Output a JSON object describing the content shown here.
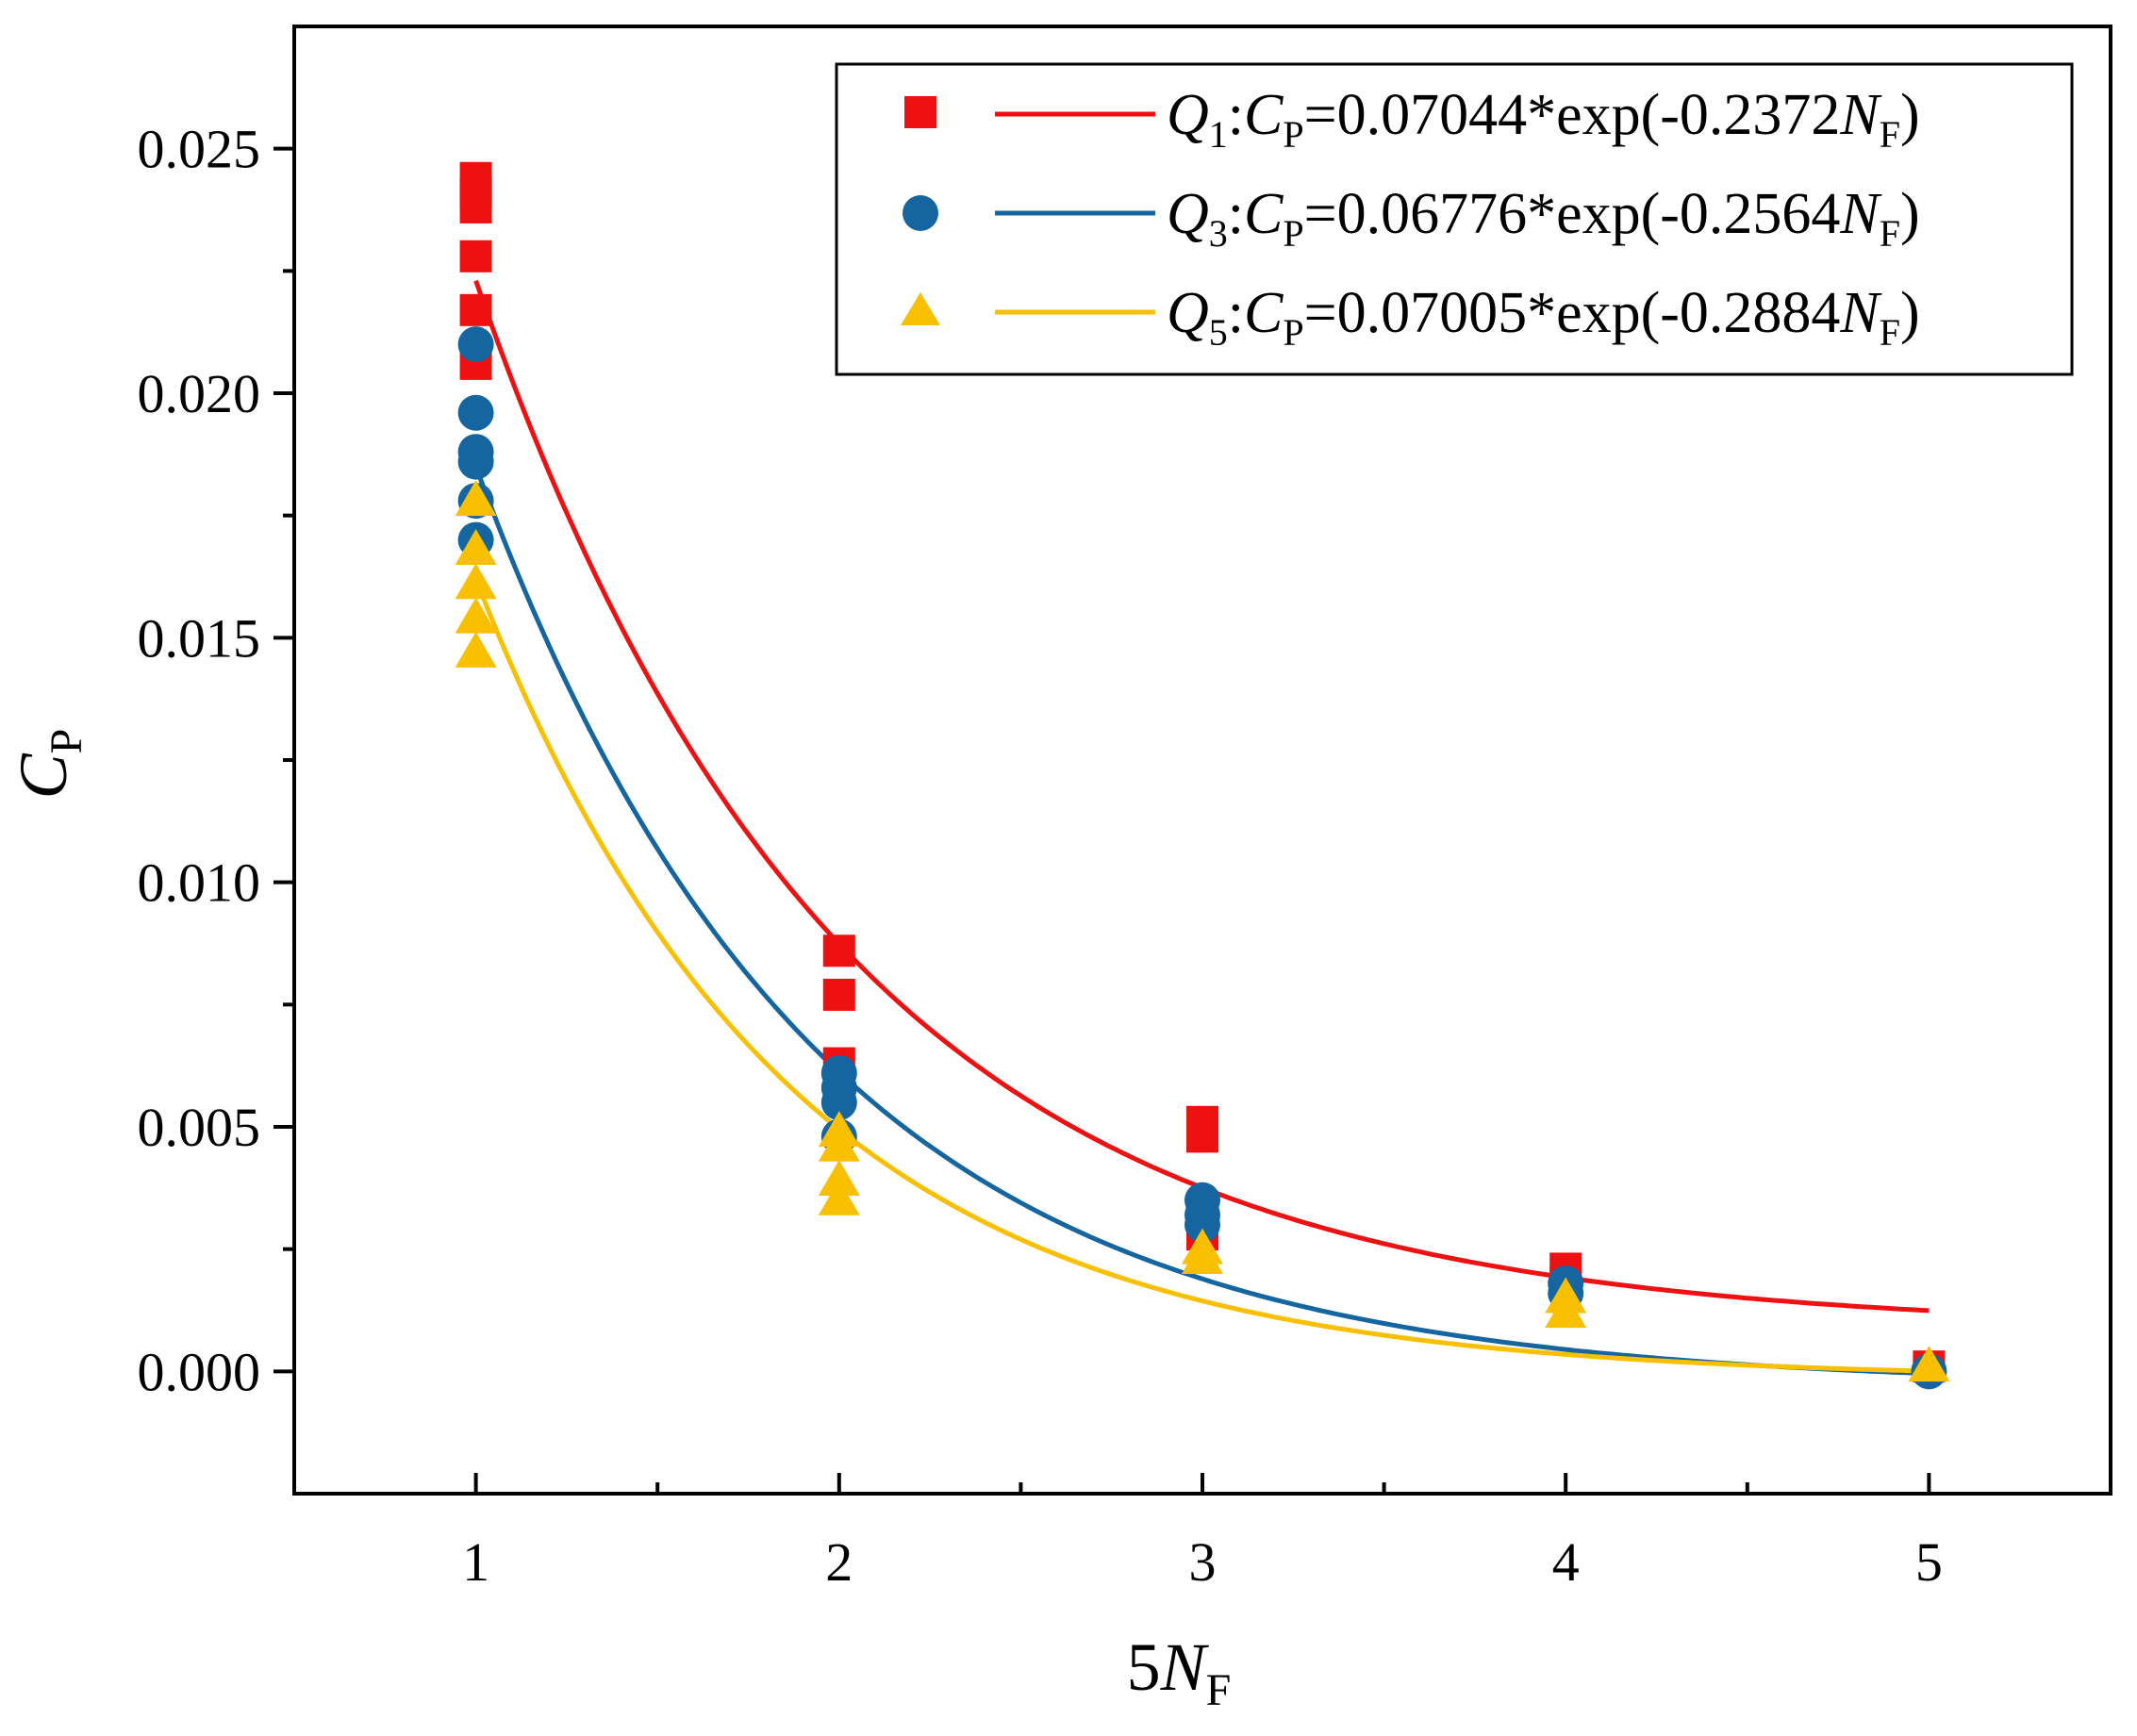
{
  "chart_data": {
    "type": "scatter",
    "title": "",
    "xlabel": "5NF",
    "ylabel": "CP",
    "xlim": [
      0.5,
      5.5
    ],
    "ylim": [
      -0.0025,
      0.0275
    ],
    "xticks": [
      1,
      2,
      3,
      4,
      5
    ],
    "xtick_labels": [
      "1",
      "2",
      "3",
      "4",
      "5"
    ],
    "yticks": [
      0.0,
      0.005,
      0.01,
      0.015,
      0.02,
      0.025
    ],
    "ytick_labels": [
      "0.000",
      "0.005",
      "0.010",
      "0.015",
      "0.020",
      "0.025"
    ],
    "grid": false,
    "legend_position": "top-right",
    "series": [
      {
        "name": "Q1",
        "marker": "square",
        "color": "#ee1111",
        "equation": "CP=0.07044*exp(-0.2372NF)",
        "fit": {
          "a": 0.07044,
          "b": 0.2372,
          "x0": 0.0,
          "c": 0.0
        },
        "points": [
          [
            1,
            0.0244
          ],
          [
            1,
            0.0241
          ],
          [
            1,
            0.0238
          ],
          [
            1,
            0.0228
          ],
          [
            1,
            0.0217
          ],
          [
            1,
            0.0206
          ],
          [
            2,
            0.0086
          ],
          [
            2,
            0.0077
          ],
          [
            2,
            0.0063
          ],
          [
            3,
            0.0051
          ],
          [
            3,
            0.0048
          ],
          [
            3,
            0.0028
          ],
          [
            4,
            0.0021
          ],
          [
            4,
            0.0018
          ],
          [
            5,
            0.0001
          ]
        ]
      },
      {
        "name": "Q3",
        "marker": "circle",
        "color": "#1565a0",
        "equation": "CP=0.06776*exp(-0.2564NF)",
        "fit": {
          "a": 0.06776,
          "b": 0.2564,
          "x0": 0.0,
          "c": 0.0
        },
        "points": [
          [
            1,
            0.021
          ],
          [
            1,
            0.0196
          ],
          [
            1,
            0.0188
          ],
          [
            1,
            0.0186
          ],
          [
            1,
            0.0178
          ],
          [
            1,
            0.017
          ],
          [
            2,
            0.0061
          ],
          [
            2,
            0.0058
          ],
          [
            2,
            0.0055
          ],
          [
            2,
            0.0048
          ],
          [
            3,
            0.0035
          ],
          [
            3,
            0.0032
          ],
          [
            3,
            0.003
          ],
          [
            4,
            0.0018
          ],
          [
            4,
            0.0016
          ],
          [
            5,
            0.0
          ]
        ]
      },
      {
        "name": "Q5",
        "marker": "triangle",
        "color": "#f8c000",
        "equation": "CP=0.07005*exp(-0.2884NF)",
        "fit": {
          "a": 0.07005,
          "b": 0.2884,
          "x0": 0.0,
          "c": 0.0
        },
        "points": [
          [
            1,
            0.0178
          ],
          [
            1,
            0.0168
          ],
          [
            1,
            0.0161
          ],
          [
            1,
            0.0154
          ],
          [
            1,
            0.0147
          ],
          [
            2,
            0.0049
          ],
          [
            2,
            0.0046
          ],
          [
            2,
            0.0039
          ],
          [
            2,
            0.0035
          ],
          [
            3,
            0.0025
          ],
          [
            3,
            0.0023
          ],
          [
            4,
            0.0015
          ],
          [
            4,
            0.0012
          ],
          [
            5,
            0.0001
          ]
        ]
      }
    ]
  },
  "legend": {
    "entries": [
      {
        "q": "Q",
        "q_sub": "1",
        "c": "C",
        "c_sub": "P",
        "eq": "=0.07044*exp(-0.2372",
        "n": "N",
        "n_sub": "F",
        "close": ")"
      },
      {
        "q": "Q",
        "q_sub": "3",
        "c": "C",
        "c_sub": "P",
        "eq": "=0.06776*exp(-0.2564",
        "n": "N",
        "n_sub": "F",
        "close": ")"
      },
      {
        "q": "Q",
        "q_sub": "5",
        "c": "C",
        "c_sub": "P",
        "eq": "=0.07005*exp(-0.2884",
        "n": "N",
        "n_sub": "F",
        "close": ")"
      }
    ]
  },
  "axes": {
    "xlabel_prefix": "5",
    "xlabel_var": "N",
    "xlabel_sub": "F",
    "ylabel_var": "C",
    "ylabel_sub": "P"
  }
}
